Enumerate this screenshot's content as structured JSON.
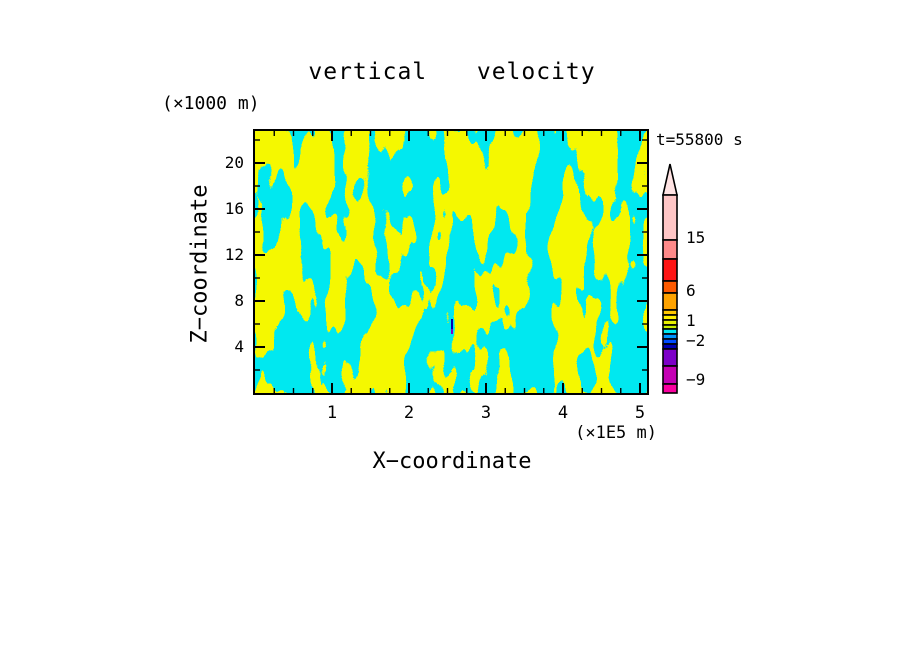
{
  "figure": {
    "title": "vertical  velocity",
    "timestamp": "t=55800 s",
    "x_axis_title": "X−coordinate",
    "y_axis_title": "Z−coordinate",
    "x_axis_unit": "(×1E5 m)",
    "y_axis_unit": "(×1000 m)",
    "x_tick_labels": [
      "1",
      "2",
      "3",
      "4",
      "5"
    ],
    "y_tick_labels": [
      "20",
      "16",
      "12",
      "8",
      "4"
    ],
    "colorbar_labels": [
      "15",
      "6",
      "1",
      "−2",
      "−9"
    ]
  },
  "chart_data": {
    "type": "heatmap",
    "title": "vertical velocity",
    "timestamp": "t=55800 s",
    "xlabel": "X-coordinate",
    "ylabel": "Z-coordinate",
    "x_unit": "×1E5 m",
    "y_unit": "×1000 m",
    "xlim": [
      0,
      5.09
    ],
    "ylim": [
      0,
      22.8
    ],
    "x_major_ticks": [
      1,
      2,
      3,
      4,
      5
    ],
    "x_minor_step": 0.25,
    "y_major_ticks": [
      4,
      8,
      12,
      16,
      20
    ],
    "y_minor_step": 2,
    "grid": false,
    "legend_position": "right-colorbar",
    "colorbar": {
      "labeled_levels": [
        15,
        6,
        1,
        -2,
        -9
      ],
      "arrow": "up",
      "arrow_color": "#FFE3E3",
      "colors_top_to_bottom": [
        "#FFC6C6",
        "#FF8A8A",
        "#FF1414",
        "#FF5A00",
        "#FFA300",
        "#FFC800",
        "#FFF000",
        "#E8F000",
        "#C8F000",
        "#00E8F0",
        "#0094FF",
        "#004CFF",
        "#0000B4",
        "#7D00C8",
        "#C400B4",
        "#FA00A0"
      ]
    },
    "field": {
      "positive_color": "#E8F000",
      "negative_color": "#00E8F0",
      "anomaly_color": "#0000B4",
      "description": "Turbulent vertical-velocity cross-section at t=55800 s: interleaved vertical filaments of weakly positive (yellow band, ~0 to 1) and weakly negative (cyan band, ~-2 to 0) velocity filling the whole x-z domain, roughly 50/50 coverage, with one tiny strong-negative (dark blue/purple) spot near x=2.55, z=5."
    }
  }
}
